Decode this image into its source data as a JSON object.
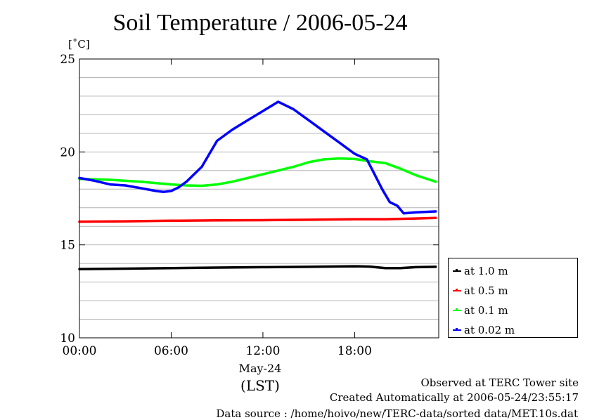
{
  "chart_data": {
    "type": "line",
    "title": "Soil Temperature / 2006-05-24",
    "ylabel": "[˚C]",
    "xlabel": "(LST)",
    "x_date_label": "May-24",
    "x_ticks": [
      "00:00",
      "06:00",
      "12:00",
      "18:00"
    ],
    "x_tick_hours": [
      0,
      6,
      12,
      18
    ],
    "xlim_hours": [
      0,
      23.5
    ],
    "ylim": [
      10,
      25
    ],
    "y_ticks": [
      10,
      15,
      20,
      25
    ],
    "grid": true,
    "legend_position": "right",
    "series": [
      {
        "name": "at 1.0 m",
        "color": "#000000",
        "x": [
          0,
          3,
          6,
          9,
          12,
          15,
          18,
          19,
          20,
          21,
          22,
          23.3
        ],
        "y": [
          13.7,
          13.72,
          13.75,
          13.78,
          13.8,
          13.82,
          13.85,
          13.83,
          13.75,
          13.75,
          13.8,
          13.82
        ]
      },
      {
        "name": "at 0.5 m",
        "color": "#ff0000",
        "x": [
          0,
          3,
          6,
          9,
          12,
          15,
          18,
          20,
          21,
          22,
          23.3
        ],
        "y": [
          16.25,
          16.27,
          16.3,
          16.32,
          16.33,
          16.35,
          16.38,
          16.38,
          16.4,
          16.42,
          16.45
        ]
      },
      {
        "name": "at 0.1 m",
        "color": "#00ff00",
        "x": [
          0,
          2,
          4,
          6,
          7,
          8,
          9,
          10,
          11,
          12,
          13,
          14,
          15,
          16,
          17,
          18,
          19,
          20,
          21,
          22,
          23.3
        ],
        "y": [
          18.55,
          18.5,
          18.4,
          18.25,
          18.2,
          18.18,
          18.25,
          18.4,
          18.6,
          18.8,
          19.0,
          19.2,
          19.45,
          19.6,
          19.65,
          19.62,
          19.5,
          19.4,
          19.1,
          18.75,
          18.4
        ]
      },
      {
        "name": "at 0.02 m",
        "color": "#0000ff",
        "x": [
          0,
          1,
          2,
          3,
          4,
          5,
          5.5,
          6,
          6.5,
          7,
          8,
          9,
          10,
          11,
          12,
          13,
          14,
          15,
          16,
          17,
          18,
          18.8,
          19.3,
          19.8,
          20.3,
          20.8,
          21.2,
          22,
          23.3
        ],
        "y": [
          18.6,
          18.45,
          18.25,
          18.2,
          18.05,
          17.9,
          17.85,
          17.9,
          18.1,
          18.4,
          19.2,
          20.6,
          21.2,
          21.7,
          22.2,
          22.7,
          22.3,
          21.7,
          21.1,
          20.5,
          19.9,
          19.6,
          18.8,
          18.0,
          17.3,
          17.1,
          16.7,
          16.75,
          16.8
        ]
      }
    ]
  },
  "footer": {
    "observed": "Observed at TERC Tower site",
    "created": "Created Automatically at 2006-05-24/23:55:17",
    "source": "Data source : /home/hoivo/new/TERC-data/sorted  data/MET.10s.dat"
  }
}
